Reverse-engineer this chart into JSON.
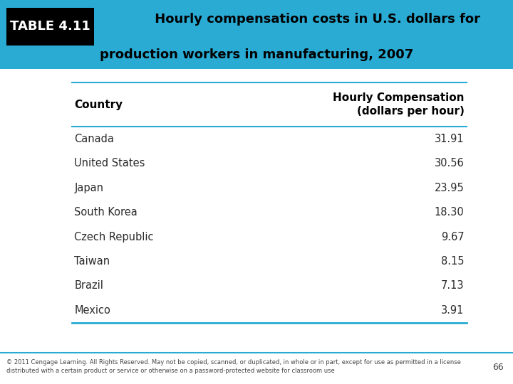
{
  "title_box_label": "TABLE 4.11",
  "title_text_line1": " Hourly compensation costs in U.S. dollars for",
  "title_text_line2": "production workers in manufacturing, 2007",
  "header_col1": "Country",
  "header_col2_line1": "Hourly Compensation",
  "header_col2_line2": "(dollars per hour)",
  "countries": [
    "Canada",
    "United States",
    "Japan",
    "South Korea",
    "Czech Republic",
    "Taiwan",
    "Brazil",
    "Mexico"
  ],
  "values": [
    "31.91",
    "30.56",
    "23.95",
    "18.30",
    "9.67",
    "8.15",
    "7.13",
    "3.91"
  ],
  "bg_color": "#FFFFFF",
  "table_label_bg": "#000000",
  "table_label_color": "#FFFFFF",
  "header_text_color": "#000000",
  "body_text_color": "#2a2a2a",
  "line_color": "#29ABD4",
  "footer_text_line1": "© 2011 Cengage Learning. All Rights Reserved. May not be copied, scanned, or duplicated, in whole or in part, except for use as permitted in a license",
  "footer_text_line2": "distributed with a certain product or service or otherwise on a password-protected website for classroom use",
  "page_number": "66",
  "title_bg_color": "#29ABD4"
}
